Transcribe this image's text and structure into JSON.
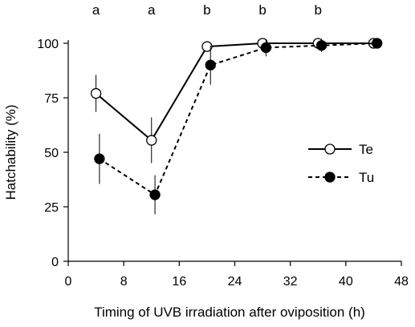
{
  "chart_data": {
    "type": "line",
    "title": "",
    "xlabel": "Timing of UVB irradiation after oviposition (h)",
    "ylabel": "Hatchability (%)",
    "xlim": [
      0,
      48
    ],
    "ylim": [
      0,
      100
    ],
    "xticks": [
      0,
      8,
      16,
      24,
      32,
      40,
      48
    ],
    "yticks": [
      0,
      25,
      50,
      75,
      100
    ],
    "grid": false,
    "legend_position": "center-right",
    "significance_letters": [
      {
        "x": 4,
        "label": "a"
      },
      {
        "x": 12,
        "label": "a"
      },
      {
        "x": 20,
        "label": "b"
      },
      {
        "x": 28,
        "label": "b"
      },
      {
        "x": 36,
        "label": "b"
      }
    ],
    "series": [
      {
        "name": "Te",
        "marker": "open-circle",
        "line_style": "solid",
        "color": "#000000",
        "x": [
          4,
          12,
          20,
          28,
          36,
          44
        ],
        "y": [
          77,
          55.5,
          98.5,
          100,
          100,
          100
        ],
        "error": [
          8.5,
          10.5,
          2,
          1.5,
          1.5,
          1.5
        ]
      },
      {
        "name": "Tu",
        "marker": "filled-circle",
        "line_style": "dashed",
        "color": "#000000",
        "x": [
          4.5,
          12.5,
          20.5,
          28.5,
          36.5,
          44.5
        ],
        "y": [
          47,
          30.5,
          90,
          98,
          99,
          100
        ],
        "error": [
          11.5,
          9,
          9,
          4,
          3,
          2
        ]
      }
    ]
  }
}
